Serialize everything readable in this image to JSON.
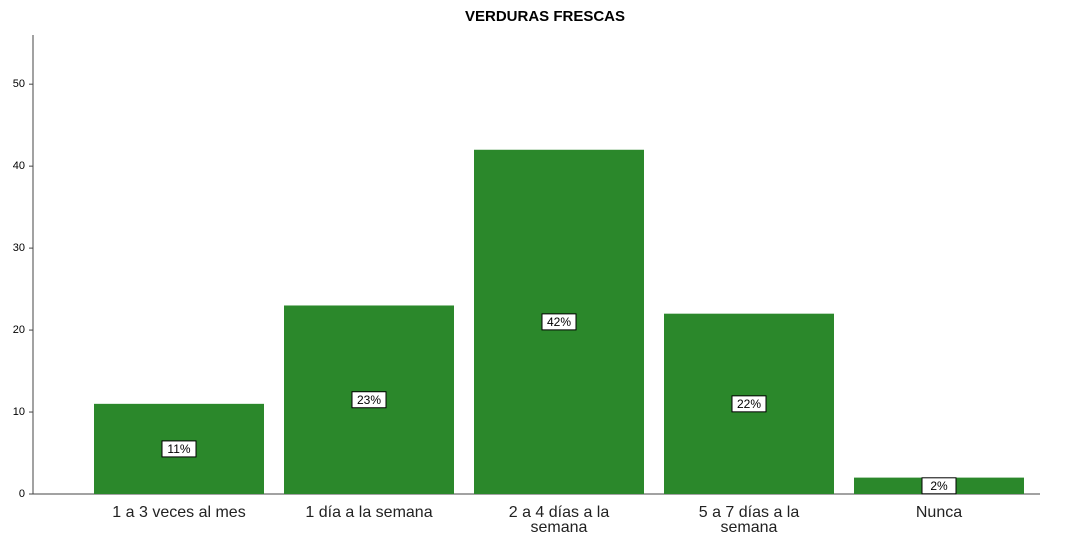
{
  "chart_data": {
    "type": "bar",
    "title": "VERDURAS FRESCAS",
    "categories": [
      "1 a 3 veces al mes",
      "1 día a la semana",
      "2 a 4 días a la semana",
      "5 a 7 días a la semana",
      "Nunca"
    ],
    "values": [
      11,
      23,
      42,
      22,
      2
    ],
    "value_labels": [
      "11%",
      "23%",
      "42%",
      "22%",
      "2%"
    ],
    "color": "#2b882b",
    "ylim": [
      0,
      56
    ],
    "yticks": [
      0,
      10,
      20,
      30,
      40,
      50
    ],
    "grid": false
  }
}
